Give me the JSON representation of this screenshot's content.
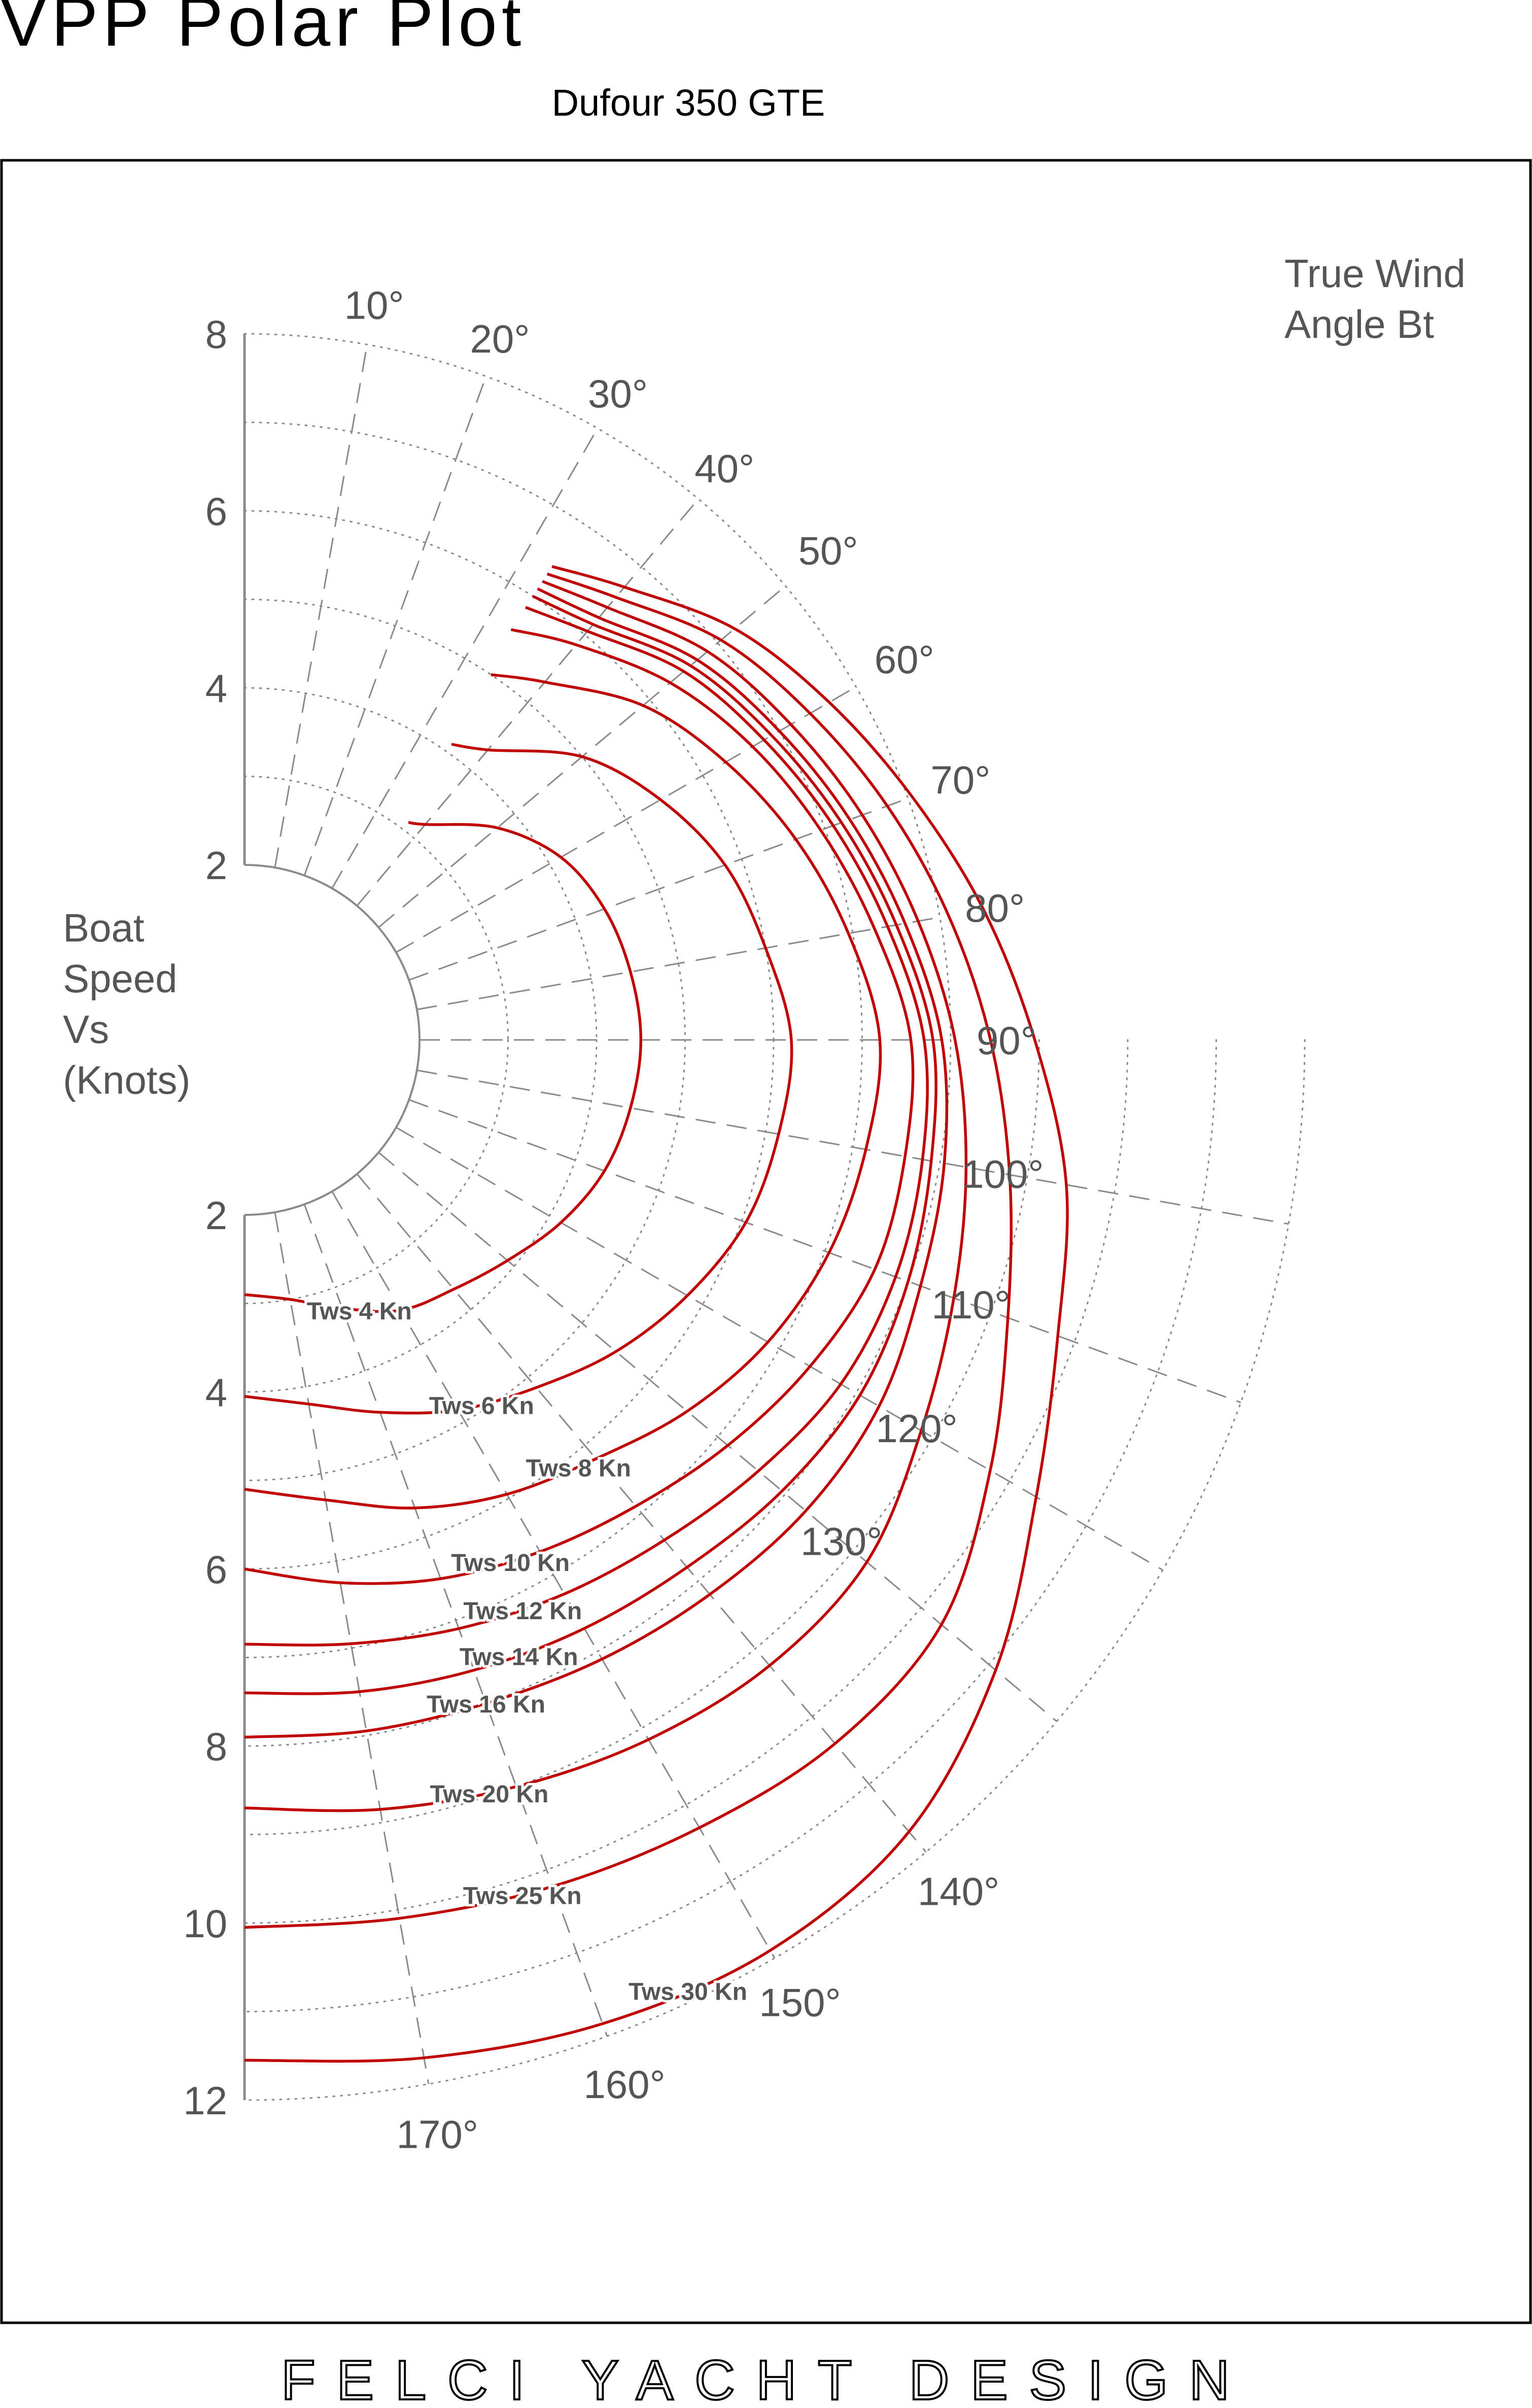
{
  "header": {
    "title": "VPP Polar Plot",
    "subtitle": "Dufour 350 GTE"
  },
  "footer": {
    "brand": "FELCI YACHT DESIGN"
  },
  "colors": {
    "curve": "#c00000",
    "axis": "#8a8a8a",
    "text": "#555555",
    "frame": "#000000"
  },
  "chart_data": {
    "type": "line",
    "coordinate_system": "polar",
    "angle_axis": {
      "label_line1": "True Wind",
      "label_line2": "Angle Bt",
      "range_deg": [
        0,
        180
      ],
      "ticks": [
        10,
        20,
        30,
        40,
        50,
        60,
        70,
        80,
        90,
        100,
        110,
        120,
        130,
        140,
        150,
        160,
        170
      ],
      "tick_suffix": "°"
    },
    "radial_axis": {
      "label_lines": [
        "Boat",
        "Speed",
        "Vs",
        "(Knots)"
      ],
      "upper_ticks": [
        2,
        4,
        6,
        8
      ],
      "lower_ticks": [
        2,
        4,
        6,
        8,
        10,
        12
      ],
      "inner_radius_knots": 2,
      "upper_range": [
        0,
        8
      ],
      "lower_range": [
        0,
        12
      ]
    },
    "grid": true,
    "series": [
      {
        "name": "Tws 4 Kn",
        "label_angle": 157,
        "points": [
          [
            37,
            3.1
          ],
          [
            40,
            3.2
          ],
          [
            50,
            3.75
          ],
          [
            60,
            4.15
          ],
          [
            70,
            4.35
          ],
          [
            80,
            4.45
          ],
          [
            90,
            4.5
          ],
          [
            100,
            4.45
          ],
          [
            110,
            4.35
          ],
          [
            120,
            4.15
          ],
          [
            130,
            3.9
          ],
          [
            140,
            3.7
          ],
          [
            150,
            3.55
          ],
          [
            160,
            3.25
          ],
          [
            170,
            3.0
          ],
          [
            180,
            2.9
          ]
        ]
      },
      {
        "name": "Tws 6 Kn",
        "label_angle": 147,
        "points": [
          [
            35,
            4.1
          ],
          [
            40,
            4.3
          ],
          [
            50,
            5.0
          ],
          [
            60,
            5.45
          ],
          [
            70,
            5.8
          ],
          [
            80,
            6.0
          ],
          [
            90,
            6.2
          ],
          [
            100,
            6.15
          ],
          [
            110,
            6.05
          ],
          [
            120,
            5.8
          ],
          [
            130,
            5.5
          ],
          [
            140,
            5.15
          ],
          [
            150,
            4.85
          ],
          [
            160,
            4.5
          ],
          [
            170,
            4.2
          ],
          [
            180,
            4.05
          ]
        ]
      },
      {
        "name": "Tws 8 Kn",
        "label_angle": 142,
        "points": [
          [
            34,
            5.0
          ],
          [
            40,
            5.3
          ],
          [
            50,
            5.9
          ],
          [
            60,
            6.3
          ],
          [
            70,
            6.65
          ],
          [
            80,
            6.95
          ],
          [
            90,
            7.2
          ],
          [
            100,
            7.15
          ],
          [
            110,
            7.05
          ],
          [
            120,
            6.85
          ],
          [
            130,
            6.55
          ],
          [
            140,
            6.2
          ],
          [
            150,
            5.95
          ],
          [
            160,
            5.65
          ],
          [
            170,
            5.3
          ],
          [
            180,
            5.1
          ]
        ]
      },
      {
        "name": "Tws 10 Kn",
        "label_angle": 153,
        "points": [
          [
            33,
            5.55
          ],
          [
            40,
            5.85
          ],
          [
            50,
            6.3
          ],
          [
            60,
            6.65
          ],
          [
            70,
            6.95
          ],
          [
            80,
            7.25
          ],
          [
            90,
            7.55
          ],
          [
            100,
            7.6
          ],
          [
            110,
            7.6
          ],
          [
            120,
            7.4
          ],
          [
            130,
            7.15
          ],
          [
            140,
            6.9
          ],
          [
            150,
            6.7
          ],
          [
            160,
            6.5
          ],
          [
            170,
            6.25
          ],
          [
            180,
            6.0
          ]
        ]
      },
      {
        "name": "Tws 12 Kn",
        "label_angle": 154,
        "points": [
          [
            33,
            5.85
          ],
          [
            40,
            6.05
          ],
          [
            50,
            6.5
          ],
          [
            60,
            6.8
          ],
          [
            70,
            7.1
          ],
          [
            80,
            7.4
          ],
          [
            90,
            7.7
          ],
          [
            100,
            7.8
          ],
          [
            110,
            7.85
          ],
          [
            120,
            7.8
          ],
          [
            130,
            7.6
          ],
          [
            140,
            7.4
          ],
          [
            150,
            7.25
          ],
          [
            160,
            7.1
          ],
          [
            170,
            6.95
          ],
          [
            180,
            6.85
          ]
        ]
      },
      {
        "name": "Tws 14 Kn",
        "label_angle": 156,
        "points": [
          [
            33,
            6.0
          ],
          [
            40,
            6.15
          ],
          [
            50,
            6.6
          ],
          [
            60,
            6.9
          ],
          [
            70,
            7.2
          ],
          [
            80,
            7.5
          ],
          [
            90,
            7.8
          ],
          [
            100,
            7.9
          ],
          [
            110,
            8.0
          ],
          [
            120,
            8.05
          ],
          [
            130,
            7.95
          ],
          [
            140,
            7.8
          ],
          [
            150,
            7.7
          ],
          [
            160,
            7.6
          ],
          [
            170,
            7.5
          ],
          [
            180,
            7.4
          ]
        ]
      },
      {
        "name": "Tws 16 Kn",
        "label_angle": 160,
        "points": [
          [
            33,
            6.1
          ],
          [
            40,
            6.25
          ],
          [
            50,
            6.7
          ],
          [
            60,
            7.0
          ],
          [
            70,
            7.3
          ],
          [
            80,
            7.6
          ],
          [
            90,
            7.9
          ],
          [
            100,
            8.05
          ],
          [
            110,
            8.15
          ],
          [
            120,
            8.3
          ],
          [
            130,
            8.3
          ],
          [
            140,
            8.2
          ],
          [
            150,
            8.1
          ],
          [
            160,
            8.0
          ],
          [
            170,
            7.95
          ],
          [
            180,
            7.9
          ]
        ]
      },
      {
        "name": "Tws 20 Kn",
        "label_angle": 162,
        "points": [
          [
            33,
            6.2
          ],
          [
            40,
            6.4
          ],
          [
            50,
            6.85
          ],
          [
            60,
            7.15
          ],
          [
            70,
            7.45
          ],
          [
            80,
            7.75
          ],
          [
            90,
            8.05
          ],
          [
            100,
            8.3
          ],
          [
            110,
            8.55
          ],
          [
            120,
            8.85
          ],
          [
            130,
            9.2
          ],
          [
            140,
            9.25
          ],
          [
            150,
            9.15
          ],
          [
            160,
            9.0
          ],
          [
            170,
            8.85
          ],
          [
            180,
            8.7
          ]
        ]
      },
      {
        "name": "Tws 25 Kn",
        "label_angle": 162,
        "points": [
          [
            33,
            6.3
          ],
          [
            40,
            6.55
          ],
          [
            50,
            7.05
          ],
          [
            60,
            7.4
          ],
          [
            70,
            7.75
          ],
          [
            80,
            8.1
          ],
          [
            90,
            8.45
          ],
          [
            100,
            8.8
          ],
          [
            110,
            9.2
          ],
          [
            120,
            9.75
          ],
          [
            130,
            10.3
          ],
          [
            140,
            10.4
          ],
          [
            150,
            10.3
          ],
          [
            160,
            10.2
          ],
          [
            170,
            10.1
          ],
          [
            180,
            10.05
          ]
        ]
      },
      {
        "name": "Tws 30 Kn",
        "label_angle": 155,
        "points": [
          [
            33,
            6.4
          ],
          [
            40,
            6.7
          ],
          [
            50,
            7.25
          ],
          [
            60,
            7.65
          ],
          [
            70,
            8.05
          ],
          [
            80,
            8.5
          ],
          [
            90,
            8.95
          ],
          [
            100,
            9.45
          ],
          [
            110,
            9.8
          ],
          [
            120,
            10.35
          ],
          [
            130,
            11.1
          ],
          [
            140,
            11.7
          ],
          [
            150,
            11.9
          ],
          [
            160,
            11.85
          ],
          [
            170,
            11.7
          ],
          [
            180,
            11.55
          ]
        ]
      }
    ]
  }
}
